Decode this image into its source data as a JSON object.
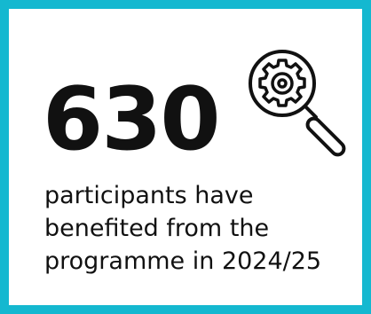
{
  "stat": {
    "value": "630",
    "caption_line1": "participants have",
    "caption_line2": "benefited from the",
    "caption_line3": "programme in 2024/25"
  },
  "icon": {
    "name": "magnifier-gear-icon"
  },
  "colors": {
    "border": "#14b8d0",
    "text": "#111111",
    "background": "#ffffff"
  }
}
